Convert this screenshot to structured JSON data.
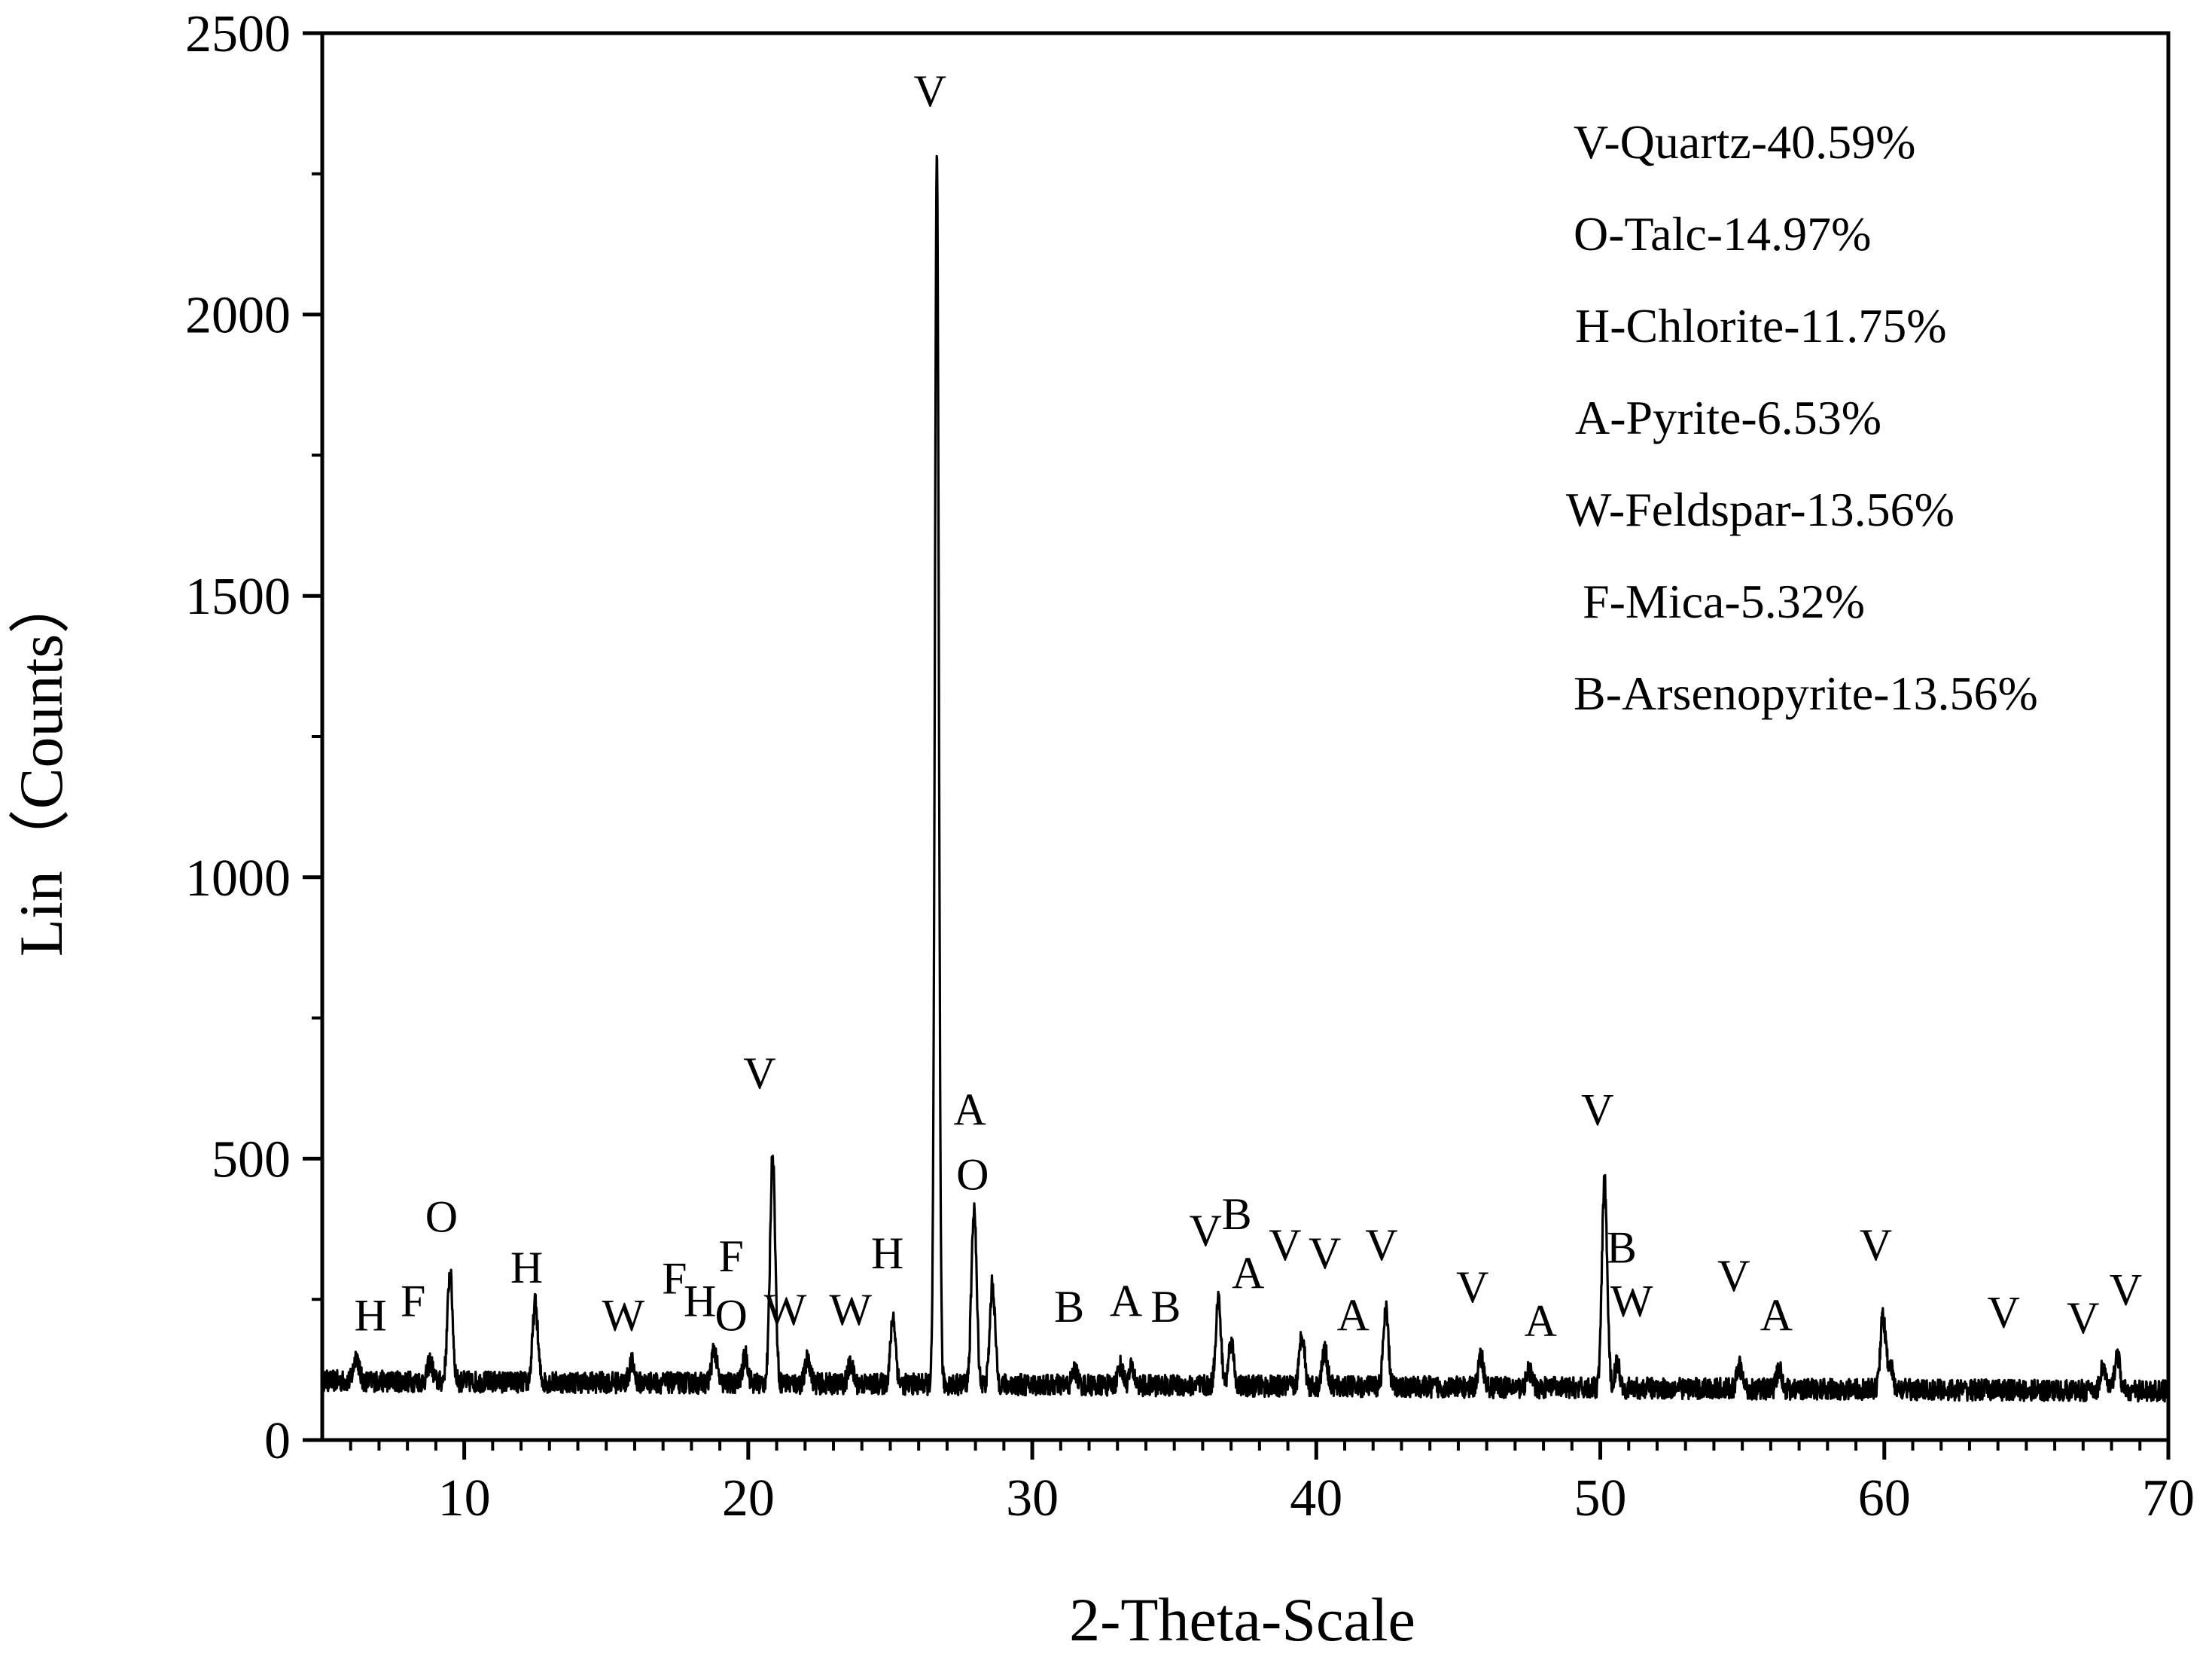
{
  "chart_data": {
    "type": "line",
    "title": "",
    "xlabel": "2-Theta-Scale",
    "ylabel": "Lin（Counts）",
    "xlim": [
      5,
      70
    ],
    "ylim": [
      0,
      2500
    ],
    "xticks": [
      10,
      20,
      30,
      40,
      50,
      60,
      70
    ],
    "xtick_labels": [
      "10",
      "20",
      "30",
      "40",
      "50",
      "60",
      "70"
    ],
    "yticks": [
      0,
      500,
      1000,
      1500,
      2000,
      2500
    ],
    "ytick_labels": [
      "0",
      "500",
      "1000",
      "1500",
      "2000",
      "2500"
    ],
    "grid": false,
    "legend_position": "top-right",
    "legend": [
      "V-Quartz-40.59%",
      "O-Talc-14.97%",
      "H-Chlorite-11.75%",
      "A-Pyrite-6.53%",
      "W-Feldspar-13.56%",
      "F-Mica-5.32%",
      "B-Arsenopyrite-13.56%"
    ],
    "baseline": 105,
    "series": [
      {
        "name": "XRD pattern",
        "peaks": [
          {
            "x": 6.2,
            "y": 150
          },
          {
            "x": 8.8,
            "y": 140
          },
          {
            "x": 9.5,
            "y": 300
          },
          {
            "x": 12.5,
            "y": 245
          },
          {
            "x": 15.9,
            "y": 140
          },
          {
            "x": 18.8,
            "y": 165
          },
          {
            "x": 19.9,
            "y": 155
          },
          {
            "x": 20.86,
            "y": 515
          },
          {
            "x": 22.1,
            "y": 150
          },
          {
            "x": 23.6,
            "y": 140
          },
          {
            "x": 25.1,
            "y": 225
          },
          {
            "x": 26.64,
            "y": 2280
          },
          {
            "x": 27.95,
            "y": 420
          },
          {
            "x": 28.6,
            "y": 285
          },
          {
            "x": 31.5,
            "y": 130
          },
          {
            "x": 33.1,
            "y": 140
          },
          {
            "x": 33.5,
            "y": 135
          },
          {
            "x": 36.55,
            "y": 260
          },
          {
            "x": 37.0,
            "y": 185
          },
          {
            "x": 39.5,
            "y": 200
          },
          {
            "x": 40.3,
            "y": 170
          },
          {
            "x": 42.45,
            "y": 240
          },
          {
            "x": 45.8,
            "y": 160
          },
          {
            "x": 47.5,
            "y": 135
          },
          {
            "x": 50.15,
            "y": 475
          },
          {
            "x": 50.6,
            "y": 150
          },
          {
            "x": 54.9,
            "y": 145
          },
          {
            "x": 56.3,
            "y": 140
          },
          {
            "x": 59.95,
            "y": 235
          },
          {
            "x": 60.2,
            "y": 150
          },
          {
            "x": 67.7,
            "y": 150
          },
          {
            "x": 68.2,
            "y": 170
          }
        ]
      }
    ],
    "annotations": [
      {
        "text": "H",
        "x": 6.7,
        "y": 195
      },
      {
        "text": "F",
        "x": 8.2,
        "y": 220
      },
      {
        "text": "O",
        "x": 9.2,
        "y": 370
      },
      {
        "text": "H",
        "x": 12.2,
        "y": 280
      },
      {
        "text": "W",
        "x": 15.6,
        "y": 195
      },
      {
        "text": "F",
        "x": 17.4,
        "y": 260
      },
      {
        "text": "H",
        "x": 18.3,
        "y": 220
      },
      {
        "text": "O",
        "x": 19.4,
        "y": 195
      },
      {
        "text": "F",
        "x": 19.4,
        "y": 300
      },
      {
        "text": "W",
        "x": 21.3,
        "y": 205
      },
      {
        "text": "V",
        "x": 20.4,
        "y": 625
      },
      {
        "text": "W",
        "x": 23.6,
        "y": 205
      },
      {
        "text": "H",
        "x": 24.9,
        "y": 305
      },
      {
        "text": "V",
        "x": 26.4,
        "y": 2370
      },
      {
        "text": "A",
        "x": 27.8,
        "y": 560
      },
      {
        "text": "O",
        "x": 27.9,
        "y": 445
      },
      {
        "text": "B",
        "x": 31.3,
        "y": 210
      },
      {
        "text": "A",
        "x": 33.3,
        "y": 220
      },
      {
        "text": "B",
        "x": 34.7,
        "y": 210
      },
      {
        "text": "V",
        "x": 36.1,
        "y": 345
      },
      {
        "text": "B",
        "x": 37.2,
        "y": 375
      },
      {
        "text": "A",
        "x": 37.6,
        "y": 270
      },
      {
        "text": "V",
        "x": 38.9,
        "y": 320
      },
      {
        "text": "V",
        "x": 40.3,
        "y": 305
      },
      {
        "text": "A",
        "x": 41.3,
        "y": 195
      },
      {
        "text": "V",
        "x": 42.3,
        "y": 320
      },
      {
        "text": "V",
        "x": 45.5,
        "y": 245
      },
      {
        "text": "A",
        "x": 47.9,
        "y": 185
      },
      {
        "text": "V",
        "x": 49.9,
        "y": 560
      },
      {
        "text": "B",
        "x": 50.75,
        "y": 315
      },
      {
        "text": "W",
        "x": 51.1,
        "y": 220
      },
      {
        "text": "V",
        "x": 54.7,
        "y": 265
      },
      {
        "text": "A",
        "x": 56.2,
        "y": 195
      },
      {
        "text": "V",
        "x": 59.7,
        "y": 320
      },
      {
        "text": "V",
        "x": 64.2,
        "y": 200
      },
      {
        "text": "V",
        "x": 67.0,
        "y": 190
      },
      {
        "text": "V",
        "x": 68.5,
        "y": 240
      }
    ]
  }
}
